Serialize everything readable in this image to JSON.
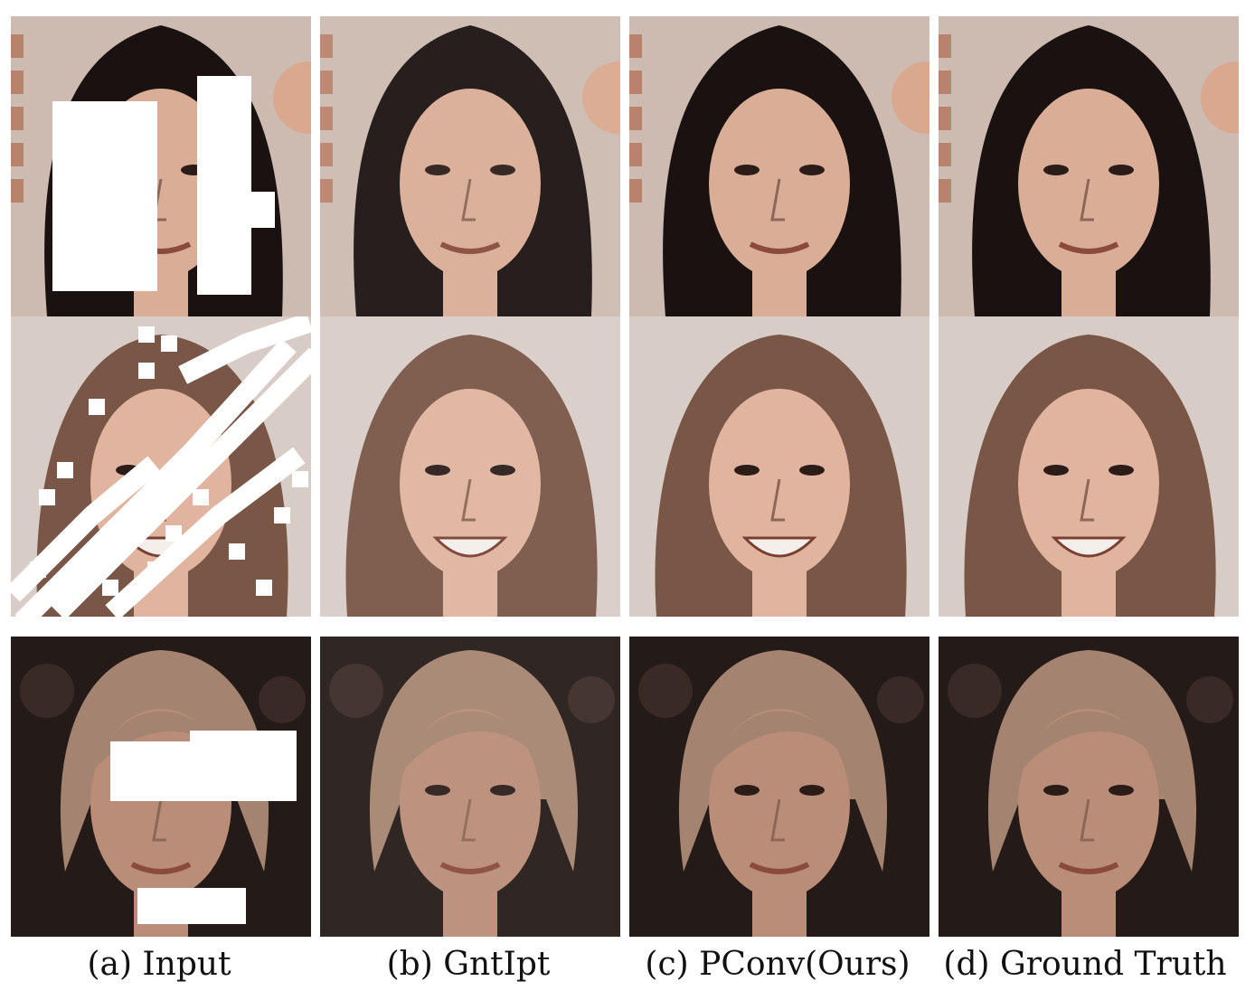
{
  "figure": {
    "columns": [
      {
        "key": "input",
        "caption": "(a) Input"
      },
      {
        "key": "gntipt",
        "caption": "(b) GntIpt"
      },
      {
        "key": "pconv",
        "caption": "(c) PConv(Ours)"
      },
      {
        "key": "gt",
        "caption": "(d) Ground Truth"
      }
    ],
    "rows": [
      {
        "subject": "woman with long dark hair",
        "background": "#cdbab0",
        "hair": "#1a1210",
        "skin": "#d9ad96"
      },
      {
        "subject": "smiling woman with light brown hair",
        "background": "#d8ccc7",
        "hair": "#7a5646",
        "skin": "#e0b49e"
      },
      {
        "subject": "man with shoulder-length blond hair",
        "background": "#241a17",
        "hair": "#a48470",
        "skin": "#b98d78"
      }
    ],
    "mask_color": "#ffffff"
  }
}
